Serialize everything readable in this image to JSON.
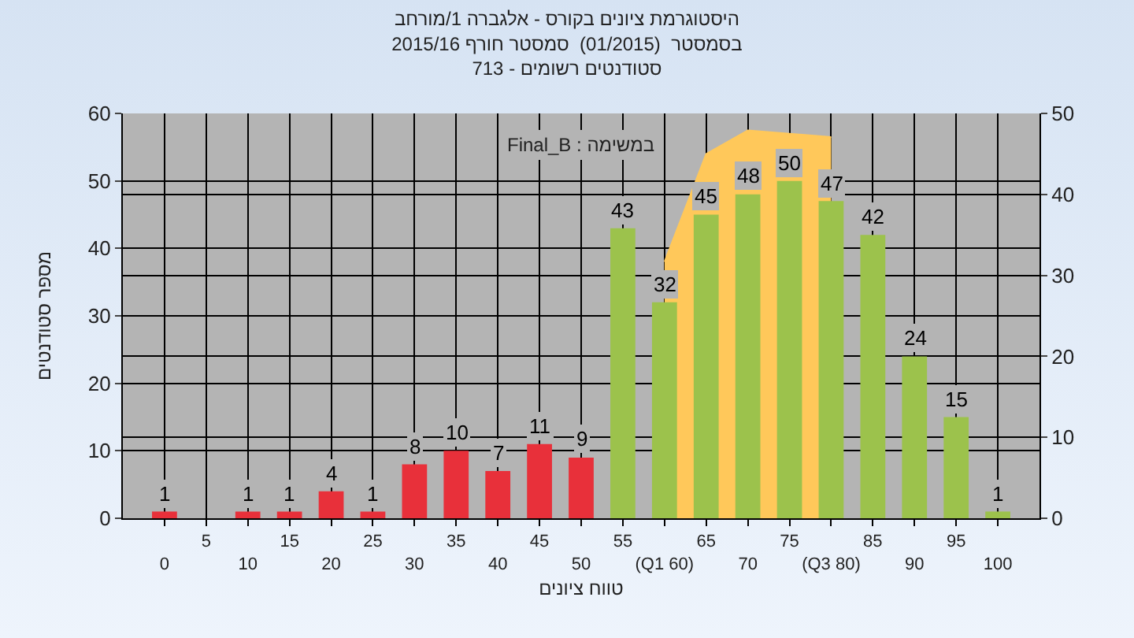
{
  "chart_data": {
    "type": "bar",
    "title": "היסטוגרמת ציונים בקורס - אלגברה 1/מורחב\nבסמסטר  (01/2015)  סמסטר חורף 2015/16\nסטודנטים רשומים - 713",
    "xlabel": "טווח ציונים",
    "ylabel": "מספר סטודנטים",
    "annotations": [
      "Final_B : במשימה"
    ],
    "categories": [
      "0",
      "5",
      "10",
      "15",
      "20",
      "25",
      "30",
      "35",
      "40",
      "45",
      "50",
      "55",
      "(Q1 60)",
      "65",
      "70",
      "75",
      "(Q3 80)",
      "85",
      "90",
      "95",
      "100"
    ],
    "series": [
      {
        "type": "area",
        "color": "#ffc85a",
        "x": [
          "(Q1 60)",
          "65",
          "70",
          "75",
          "(Q3 80)"
        ],
        "values": [
          38,
          54,
          57.5,
          57,
          56.5
        ]
      },
      {
        "values": [
          1,
          0,
          1,
          1,
          4,
          1,
          8,
          10,
          7,
          11,
          9,
          43,
          32,
          45,
          48,
          50,
          47,
          42,
          24,
          15,
          1
        ],
        "colors": [
          "#e8303a",
          "#e8303a",
          "#e8303a",
          "#e8303a",
          "#e8303a",
          "#e8303a",
          "#e8303a",
          "#e8303a",
          "#e8303a",
          "#e8303a",
          "#e8303a",
          "#9cc24c",
          "#9cc24c",
          "#9cc24c",
          "#9cc24c",
          "#9cc24c",
          "#9cc24c",
          "#9cc24c",
          "#9cc24c",
          "#9cc24c",
          "#9cc24c"
        ],
        "value_labels": [
          "1",
          null,
          "1",
          "1",
          "4",
          "1",
          "8",
          "10",
          "7",
          "11",
          "9",
          "43",
          "32",
          "45",
          "48",
          "50",
          "47",
          "42",
          "24",
          "15",
          "1"
        ]
      }
    ],
    "ylim": [
      0,
      60
    ],
    "yticks": [
      0,
      10,
      20,
      30,
      40,
      50,
      60
    ],
    "y2lim": [
      0,
      50
    ],
    "y2ticks": [
      0,
      10,
      20,
      30,
      40,
      50
    ],
    "grid": true
  }
}
